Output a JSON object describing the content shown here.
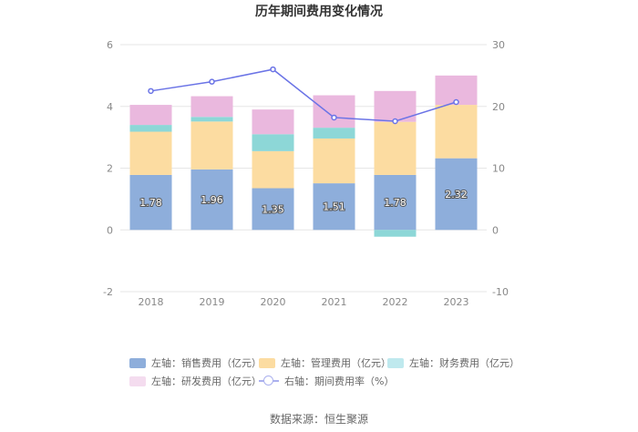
{
  "chart_data": {
    "type": "bar",
    "stacked": true,
    "title": "历年期间费用变化情况",
    "categories": [
      "2018",
      "2019",
      "2020",
      "2021",
      "2022",
      "2023"
    ],
    "left_axis": {
      "min": -2,
      "max": 6,
      "ticks": [
        "-2",
        "0",
        "2",
        "4",
        "6"
      ],
      "tick_values": [
        -2,
        0,
        2,
        4,
        6
      ]
    },
    "right_axis": {
      "min": -10,
      "max": 30,
      "ticks": [
        "-10",
        "0",
        "10",
        "20",
        "30"
      ],
      "tick_values": [
        -10,
        0,
        10,
        20,
        30
      ]
    },
    "series": [
      {
        "name": "左轴：销售费用（亿元）",
        "axis": "left",
        "color": "#8eaedb",
        "values": [
          1.78,
          1.96,
          1.35,
          1.51,
          1.78,
          2.32
        ],
        "labels": [
          "1.78",
          "1.96",
          "1.35",
          "1.51",
          "1.78",
          "2.32"
        ]
      },
      {
        "name": "左轴：管理费用（亿元）",
        "axis": "left",
        "color": "#fcdca1",
        "values": [
          1.4,
          1.55,
          1.2,
          1.45,
          1.72,
          1.73
        ]
      },
      {
        "name": "左轴：财务费用（亿元）",
        "axis": "left",
        "color": "#8dd7d7",
        "values": [
          0.22,
          0.15,
          0.55,
          0.35,
          -0.22,
          0.0
        ]
      },
      {
        "name": "左轴：研发费用（亿元）",
        "axis": "left",
        "color": "#eab8de",
        "values": [
          0.65,
          0.67,
          0.8,
          1.05,
          1.0,
          0.95
        ]
      },
      {
        "name": "右轴：期间费用率（%）",
        "axis": "right",
        "type": "line",
        "color": "#6b74e6",
        "values": [
          22.5,
          24.0,
          26.0,
          18.2,
          17.6,
          20.7
        ]
      }
    ],
    "legend_position": "bottom"
  },
  "source_text": "数据来源：恒生聚源"
}
